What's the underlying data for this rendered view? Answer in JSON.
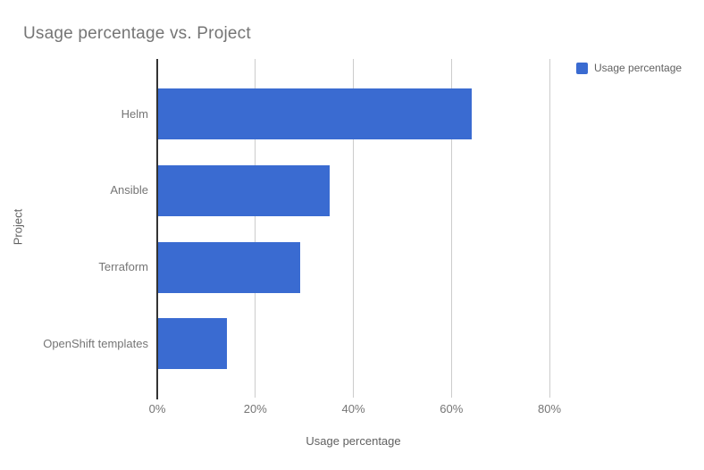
{
  "chart_data": {
    "type": "bar",
    "orientation": "horizontal",
    "title": "Usage percentage vs. Project",
    "categories": [
      "Helm",
      "Ansible",
      "Terraform",
      "OpenShift templates"
    ],
    "series": [
      {
        "name": "Usage percentage",
        "values": [
          64,
          35,
          29,
          14
        ]
      }
    ],
    "xlabel": "Usage percentage",
    "ylabel": "Project",
    "xlim": [
      0,
      80
    ],
    "x_ticks": [
      {
        "value": 0,
        "label": "0%"
      },
      {
        "value": 20,
        "label": "20%"
      },
      {
        "value": 40,
        "label": "40%"
      },
      {
        "value": 60,
        "label": "60%"
      },
      {
        "value": 80,
        "label": "80%"
      }
    ],
    "grid": true,
    "legend_position": "top-right",
    "value_format": "percent"
  },
  "colors": {
    "series": "#3a6bd1",
    "gridline": "#cccccc",
    "axis_line": "#333333",
    "title_text": "#757575",
    "tick_text": "#757575",
    "axis_title_text": "#616161",
    "background": "#ffffff"
  }
}
